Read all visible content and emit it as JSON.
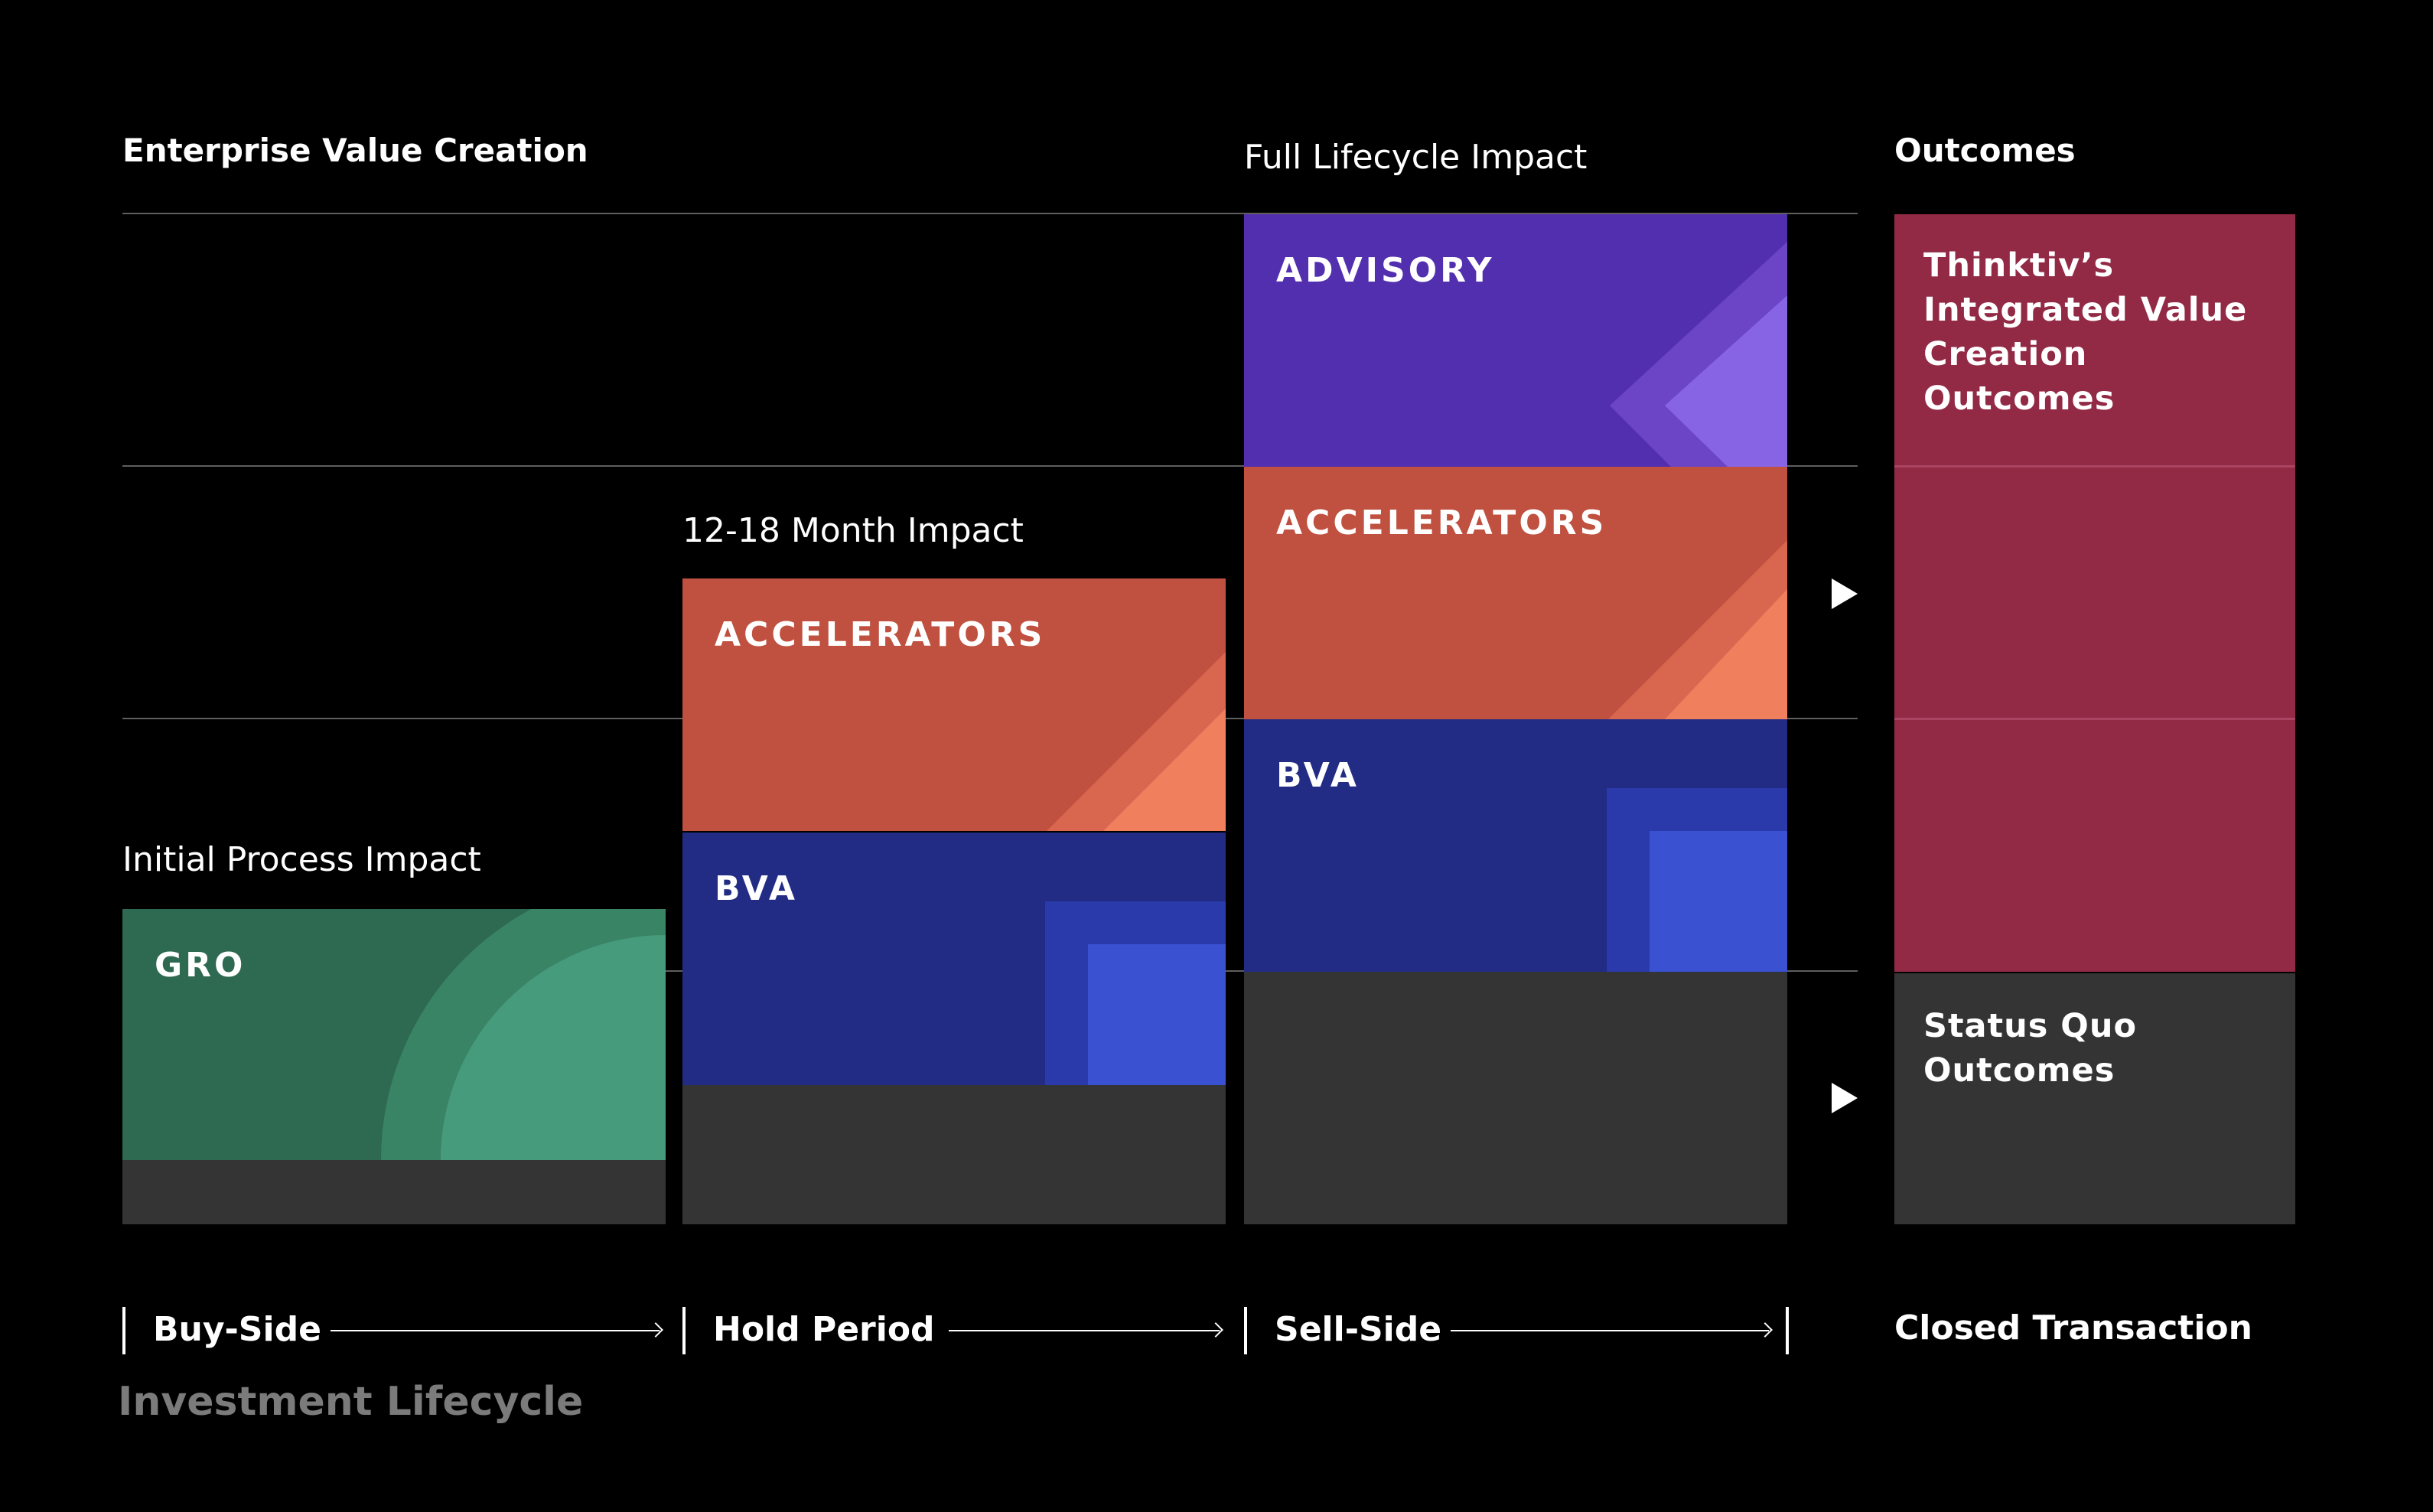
{
  "headings": {
    "main": "Enterprise Value Creation",
    "outcomes": "Outcomes"
  },
  "impacts": {
    "initial": "Initial Process Impact",
    "hold": "12-18 Month Impact",
    "full": "Full Lifecycle Impact"
  },
  "blocks": {
    "gro": "GRO",
    "bva": "BVA",
    "accelerators": "ACCELERATORS",
    "advisory": "ADVISORY"
  },
  "outcomes": {
    "integrated": "Thinktiv’s Integrated Value Creation Outcomes",
    "status_quo": "Status Quo Outcomes"
  },
  "stages": {
    "buy": "Buy-Side",
    "hold": "Hold Period",
    "sell": "Sell-Side",
    "closed": "Closed Transaction"
  },
  "footer": "Investment Lifecycle",
  "colors": {
    "gro": "#2e6a52",
    "bva": "#222c84",
    "accelerators": "#c0503f",
    "advisory": "#522fae",
    "outcome_integrated": "#922a46",
    "status_quo": "#343434"
  }
}
